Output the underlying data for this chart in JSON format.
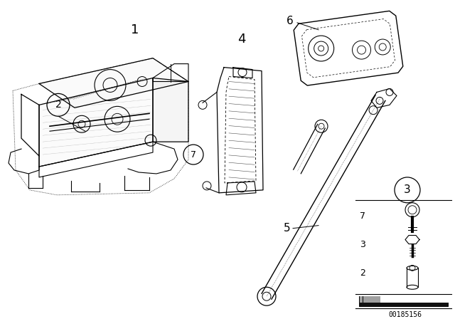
{
  "background_color": "#ffffff",
  "line_color": "#000000",
  "figure_width": 6.4,
  "figure_height": 4.48,
  "dpi": 100,
  "image_id": "00185156"
}
